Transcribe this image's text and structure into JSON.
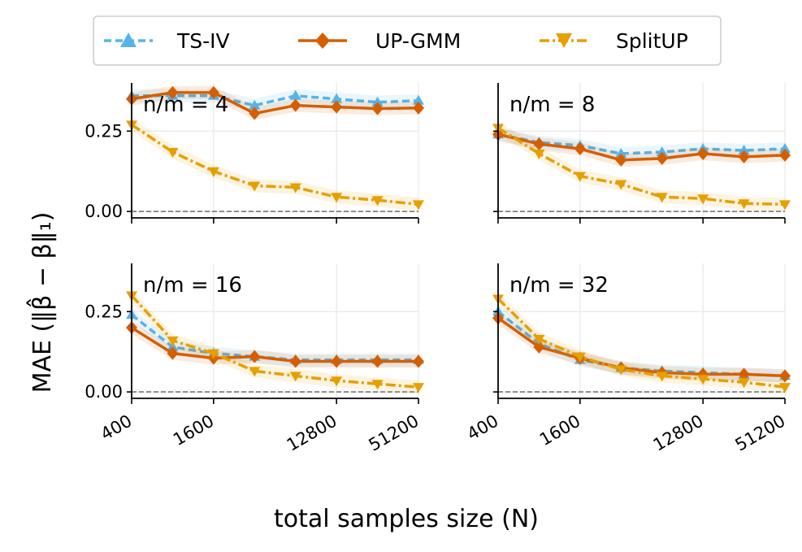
{
  "figure": {
    "xlabel": "total samples size (N)",
    "ylabel": "MAE (‖β̂ − β‖₁)"
  },
  "legend": {
    "placement": "top-center",
    "entries": [
      {
        "label": "TS-IV",
        "color": "#56B4E9",
        "marker": "triangle-up",
        "line": "dashed"
      },
      {
        "label": "UP-GMM",
        "color": "#D55E00",
        "marker": "diamond",
        "line": "solid"
      },
      {
        "label": "SplitUP",
        "color": "#E69F00",
        "marker": "triangle-down",
        "line": "dashdot"
      }
    ]
  },
  "chart_data": [
    {
      "type": "line",
      "panel_label": "n/m = 4",
      "x": [
        400,
        800,
        1600,
        3200,
        6400,
        12800,
        25600,
        51200
      ],
      "xscale": "log2",
      "xticks": [
        "400",
        "1600",
        "12800",
        "51200"
      ],
      "yticks": [
        "0.00",
        "0.25"
      ],
      "ylim": [
        -0.02,
        0.4
      ],
      "grid": true,
      "reference_line": 0,
      "series": [
        {
          "name": "TS-IV",
          "values": [
            0.36,
            0.36,
            0.36,
            0.33,
            0.36,
            0.35,
            0.34,
            0.345
          ]
        },
        {
          "name": "UP-GMM",
          "values": [
            0.35,
            0.37,
            0.37,
            0.305,
            0.33,
            0.325,
            0.32,
            0.322
          ]
        },
        {
          "name": "SplitUP",
          "values": [
            0.27,
            0.185,
            0.125,
            0.08,
            0.075,
            0.045,
            0.035,
            0.022
          ]
        }
      ]
    },
    {
      "type": "line",
      "panel_label": "n/m = 8",
      "x": [
        400,
        800,
        1600,
        3200,
        6400,
        12800,
        25600,
        51200
      ],
      "xscale": "log2",
      "xticks": [
        "400",
        "1600",
        "12800",
        "51200"
      ],
      "yticks": [
        "0.00",
        "0.25"
      ],
      "ylim": [
        -0.02,
        0.4
      ],
      "grid": true,
      "reference_line": 0,
      "series": [
        {
          "name": "TS-IV",
          "values": [
            0.24,
            0.215,
            0.205,
            0.18,
            0.185,
            0.195,
            0.19,
            0.195
          ]
        },
        {
          "name": "UP-GMM",
          "values": [
            0.24,
            0.21,
            0.195,
            0.16,
            0.165,
            0.18,
            0.17,
            0.175
          ]
        },
        {
          "name": "SplitUP",
          "values": [
            0.26,
            0.18,
            0.11,
            0.085,
            0.045,
            0.04,
            0.025,
            0.022
          ]
        }
      ]
    },
    {
      "type": "line",
      "panel_label": "n/m = 16",
      "x": [
        400,
        800,
        1600,
        3200,
        6400,
        12800,
        25600,
        51200
      ],
      "xscale": "log2",
      "xticks": [
        "400",
        "1600",
        "12800",
        "51200"
      ],
      "yticks": [
        "0.00",
        "0.25"
      ],
      "ylim": [
        -0.02,
        0.4
      ],
      "grid": true,
      "reference_line": 0,
      "series": [
        {
          "name": "TS-IV",
          "values": [
            0.24,
            0.14,
            0.12,
            0.11,
            0.1,
            0.1,
            0.1,
            0.1
          ]
        },
        {
          "name": "UP-GMM",
          "values": [
            0.2,
            0.12,
            0.105,
            0.11,
            0.095,
            0.095,
            0.095,
            0.095
          ]
        },
        {
          "name": "SplitUP",
          "values": [
            0.3,
            0.16,
            0.12,
            0.065,
            0.05,
            0.035,
            0.025,
            0.015
          ]
        }
      ]
    },
    {
      "type": "line",
      "panel_label": "n/m = 32",
      "x": [
        400,
        800,
        1600,
        3200,
        6400,
        12800,
        25600,
        51200
      ],
      "xscale": "log2",
      "xticks": [
        "400",
        "1600",
        "12800",
        "51200"
      ],
      "yticks": [
        "0.00",
        "0.25"
      ],
      "ylim": [
        -0.02,
        0.4
      ],
      "grid": true,
      "reference_line": 0,
      "series": [
        {
          "name": "TS-IV",
          "values": [
            0.25,
            0.15,
            0.1,
            0.075,
            0.065,
            0.06,
            0.055,
            0.05
          ]
        },
        {
          "name": "UP-GMM",
          "values": [
            0.23,
            0.14,
            0.105,
            0.075,
            0.06,
            0.055,
            0.055,
            0.05
          ]
        },
        {
          "name": "SplitUP",
          "values": [
            0.29,
            0.165,
            0.11,
            0.07,
            0.05,
            0.04,
            0.03,
            0.015
          ]
        }
      ]
    }
  ]
}
